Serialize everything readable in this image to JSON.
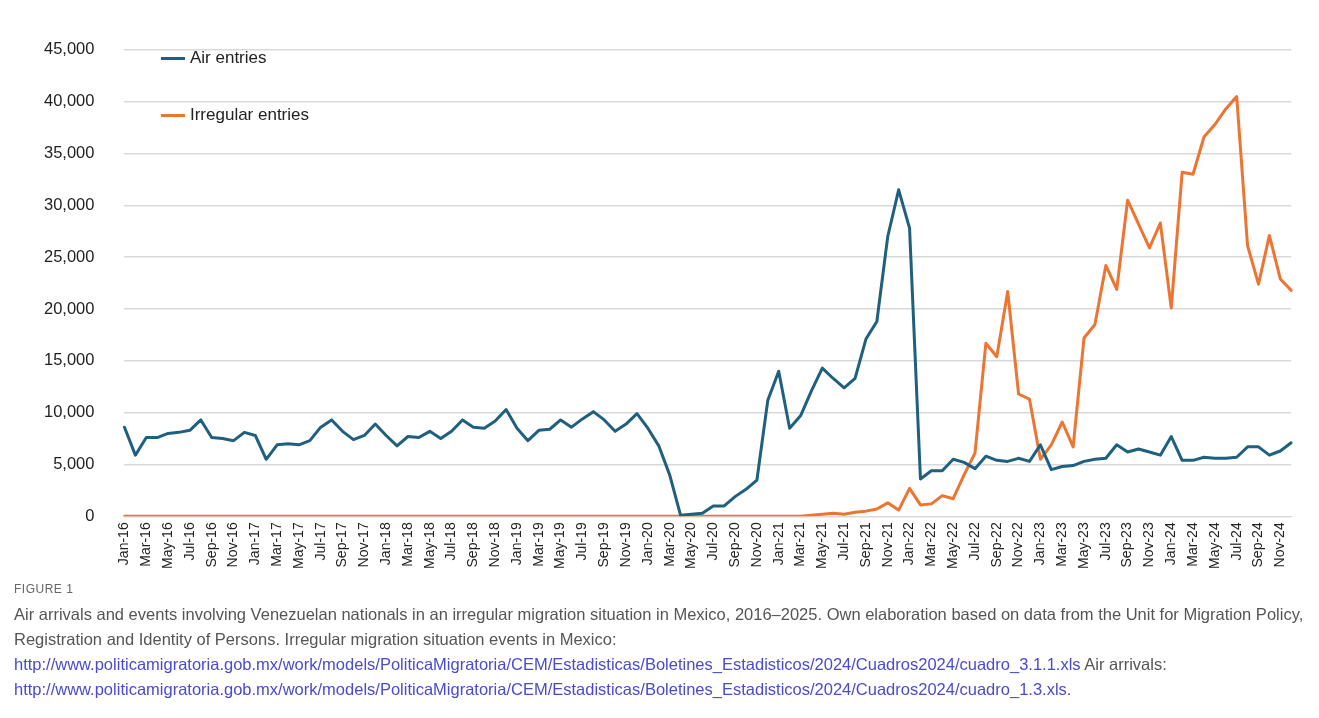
{
  "chart_data": {
    "type": "line",
    "categories": [
      "Jan-16",
      null,
      "Mar-16",
      null,
      "May-16",
      null,
      "Jul-16",
      null,
      "Sep-16",
      null,
      "Nov-16",
      null,
      "Jan-17",
      null,
      "Mar-17",
      null,
      "May-17",
      null,
      "Jul-17",
      null,
      "Sep-17",
      null,
      "Nov-17",
      null,
      "Jan-18",
      null,
      "Mar-18",
      null,
      "May-18",
      null,
      "Jul-18",
      null,
      "Sep-18",
      null,
      "Nov-18",
      null,
      "Jan-19",
      null,
      "Mar-19",
      null,
      "May-19",
      null,
      "Jul-19",
      null,
      "Sep-19",
      null,
      "Nov-19",
      null,
      "Jan-20",
      null,
      "Mar-20",
      null,
      "May-20",
      null,
      "Jul-20",
      null,
      "Sep-20",
      null,
      "Nov-20",
      null,
      "Jan-21",
      null,
      "Mar-21",
      null,
      "May-21",
      null,
      "Jul-21",
      null,
      "Sep-21",
      null,
      "Nov-21",
      null,
      "Jan-22",
      null,
      "Mar-22",
      null,
      "May-22",
      null,
      "Jul-22",
      null,
      "Sep-22",
      null,
      "Nov-22",
      null,
      "Jan-23",
      null,
      "Mar-23",
      null,
      "May-23",
      null,
      "Jul-23",
      null,
      "Sep-23",
      null,
      "Nov-23",
      null,
      "Jan-24",
      null,
      "Mar-24",
      null,
      "May-24",
      null,
      "Jul-24",
      null,
      "Sep-24",
      null,
      "Nov-24",
      null
    ],
    "series": [
      {
        "name": "Air entries",
        "color": "#1f5f7f",
        "values": [
          8600,
          5900,
          7600,
          7600,
          8000,
          8100,
          8300,
          9300,
          7600,
          7500,
          7300,
          8100,
          7800,
          5500,
          6900,
          7000,
          6900,
          7300,
          8600,
          9300,
          8200,
          7400,
          7800,
          8900,
          7800,
          6800,
          7700,
          7600,
          8200,
          7500,
          8200,
          9300,
          8600,
          8500,
          9200,
          10300,
          8500,
          7300,
          8300,
          8400,
          9300,
          8600,
          9400,
          10100,
          9300,
          8200,
          8900,
          9900,
          8500,
          6800,
          4000,
          100,
          200,
          300,
          1000,
          1000,
          1900,
          2600,
          3500,
          11200,
          14000,
          8500,
          9700,
          12100,
          14300,
          13300,
          12400,
          13300,
          17100,
          18800,
          27000,
          31500,
          27800,
          3600,
          4400,
          4400,
          5500,
          5200,
          4600,
          5800,
          5400,
          5300,
          5600,
          5300,
          6900,
          4500,
          4800,
          4900,
          5300,
          5500,
          5600,
          6900,
          6200,
          6500,
          6200,
          5900,
          7700,
          5400,
          5400,
          5700,
          5600,
          5600,
          5700,
          6700,
          6700,
          5900,
          6300,
          7100
        ]
      },
      {
        "name": "Irregular entries",
        "color": "#ed7431",
        "values": [
          0,
          0,
          0,
          0,
          0,
          0,
          0,
          0,
          0,
          0,
          0,
          0,
          0,
          0,
          0,
          0,
          0,
          0,
          0,
          0,
          0,
          0,
          0,
          0,
          0,
          0,
          0,
          0,
          0,
          0,
          0,
          0,
          0,
          0,
          0,
          0,
          0,
          0,
          0,
          0,
          0,
          0,
          0,
          0,
          0,
          0,
          0,
          0,
          0,
          0,
          0,
          0,
          0,
          0,
          0,
          0,
          0,
          0,
          0,
          0,
          0,
          0,
          0,
          100,
          200,
          300,
          200,
          400,
          500,
          700,
          1300,
          600,
          2700,
          1100,
          1200,
          2000,
          1700,
          4000,
          6100,
          16700,
          15400,
          21700,
          11800,
          11300,
          5500,
          6900,
          9100,
          6700,
          17200,
          18500,
          24200,
          21900,
          30500,
          28200,
          25900,
          28300,
          20100,
          33200,
          33000,
          36600,
          37800,
          39300,
          40500,
          26100,
          22400,
          27100,
          22900,
          21800
        ]
      }
    ],
    "ylim": [
      0,
      45000
    ],
    "yticks": [
      0,
      {
        "value": 5000,
        "label": "5,000"
      },
      {
        "value": 10000,
        "label": "10,000"
      },
      {
        "value": 15000,
        "label": "15,000"
      },
      {
        "value": 20000,
        "label": "20,000"
      },
      {
        "value": 25000,
        "label": "25,000"
      },
      {
        "value": 30000,
        "label": "30,000"
      },
      {
        "value": 35000,
        "label": "35,000"
      },
      {
        "value": 40000,
        "label": "40,000"
      },
      {
        "value": 45000,
        "label": "45,000"
      }
    ],
    "grid": "y",
    "legend": "top left",
    "marker": "none",
    "line_style": "solid",
    "annotations": [
      "FIGURE 1",
      "Air arrivals and events involving Venezuelan nationals in an irregular migration situation in Mexico, 2016–2025. Own elaboration based on data from the Unit for Migration Policy, Registration and Identity of Persons. Irregular migration situation events in Mexico: http://www.politicamigratoria.gob.mx/work/models/PoliticaMigratoria/CEM/Estadisticas/Boletines_Estadisticos/2024/Cuadros2024/cuadro_3.1.1.xls Air arrivals: http://www.politicamigratoria.gob.mx/work/models/PoliticaMigratoria/CEM/Estadisticas/Boletines_Estadisticos/2024/Cuadros2024/cuadro_1.3.xls."
    ]
  }
}
